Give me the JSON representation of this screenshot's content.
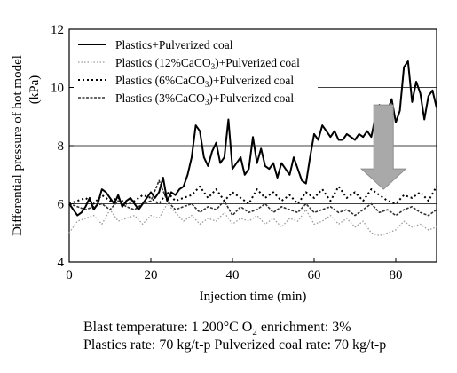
{
  "chart_data": {
    "type": "line",
    "xlabel": "Injection time (min)",
    "ylabel": "Differential pressure of hot model",
    "ylabel_unit": "(kPa)",
    "xlim": [
      0,
      90
    ],
    "ylim": [
      4,
      12
    ],
    "xticks": [
      0,
      20,
      40,
      60,
      80
    ],
    "yticks": [
      4,
      6,
      8,
      10,
      12
    ],
    "grid_y": [
      6,
      8,
      10
    ],
    "legend_position": "top-left",
    "series": [
      {
        "name": "Plastics+Pulverized coal",
        "style": "solid",
        "color": "#000000",
        "x": [
          0,
          1,
          2,
          3,
          4,
          5,
          6,
          7,
          8,
          9,
          10,
          11,
          12,
          13,
          14,
          15,
          16,
          17,
          18,
          19,
          20,
          21,
          22,
          23,
          24,
          25,
          26,
          27,
          28,
          29,
          30,
          31,
          32,
          33,
          34,
          35,
          36,
          37,
          38,
          39,
          40,
          41,
          42,
          43,
          44,
          45,
          46,
          47,
          48,
          49,
          50,
          51,
          52,
          53,
          54,
          55,
          56,
          57,
          58,
          59,
          60,
          61,
          62,
          63,
          64,
          65,
          66,
          67,
          68,
          69,
          70,
          71,
          72,
          73,
          74,
          75,
          76,
          77,
          78,
          79,
          80,
          81,
          82,
          83,
          84,
          85,
          86,
          87,
          88,
          89,
          90
        ],
        "y": [
          6.0,
          5.8,
          5.6,
          5.7,
          5.9,
          6.2,
          5.8,
          6.0,
          6.5,
          6.4,
          6.2,
          6.0,
          6.3,
          5.9,
          6.1,
          6.2,
          6.0,
          5.8,
          6.0,
          6.2,
          6.4,
          6.2,
          6.4,
          6.9,
          6.1,
          6.4,
          6.3,
          6.5,
          6.6,
          7.0,
          7.6,
          8.7,
          8.5,
          7.6,
          7.3,
          7.8,
          8.1,
          7.4,
          7.6,
          8.9,
          7.2,
          7.4,
          7.6,
          7.0,
          7.2,
          8.3,
          7.4,
          7.9,
          7.3,
          7.2,
          7.4,
          6.9,
          7.4,
          7.2,
          7.0,
          7.6,
          7.2,
          6.8,
          6.7,
          7.6,
          8.4,
          8.2,
          8.7,
          8.5,
          8.3,
          8.5,
          8.2,
          8.2,
          8.4,
          8.3,
          8.2,
          8.4,
          8.3,
          8.5,
          8.3,
          9.0,
          9.4,
          9.0,
          9.2,
          9.6,
          8.8,
          9.2,
          10.7,
          10.9,
          9.5,
          10.2,
          9.8,
          8.9,
          9.7,
          9.9,
          9.3
        ]
      },
      {
        "name": "Plastics (12%CaCO3)+Pulverized coal",
        "style": "dotted-light",
        "color": "#9a9a9a",
        "x": [
          0,
          2,
          4,
          6,
          8,
          10,
          12,
          14,
          16,
          18,
          20,
          22,
          24,
          26,
          28,
          30,
          32,
          34,
          36,
          38,
          40,
          42,
          44,
          46,
          48,
          50,
          52,
          54,
          56,
          58,
          60,
          62,
          64,
          66,
          68,
          70,
          72,
          74,
          76,
          78,
          80,
          82,
          84,
          86,
          88,
          90
        ],
        "y": [
          5.0,
          5.4,
          5.5,
          5.6,
          5.3,
          5.8,
          5.4,
          5.5,
          5.6,
          5.3,
          5.6,
          5.5,
          6.0,
          5.7,
          5.4,
          5.6,
          5.3,
          5.5,
          5.4,
          5.7,
          5.3,
          5.5,
          5.4,
          5.6,
          5.3,
          5.5,
          5.2,
          5.5,
          5.4,
          5.8,
          5.3,
          5.4,
          5.6,
          5.3,
          5.5,
          5.2,
          5.4,
          5.0,
          4.9,
          5.0,
          5.1,
          5.4,
          5.2,
          5.3,
          5.1,
          5.2
        ]
      },
      {
        "name": "Plastics (6%CaCO3)+Pulverized coal",
        "style": "dotted",
        "color": "#000000",
        "x": [
          0,
          2,
          4,
          6,
          8,
          10,
          12,
          14,
          16,
          18,
          20,
          22,
          24,
          26,
          28,
          30,
          32,
          34,
          36,
          38,
          40,
          42,
          44,
          46,
          48,
          50,
          52,
          54,
          56,
          58,
          60,
          62,
          64,
          66,
          68,
          70,
          72,
          74,
          76,
          78,
          80,
          82,
          84,
          86,
          88,
          90
        ],
        "y": [
          6.0,
          6.1,
          6.2,
          6.0,
          6.3,
          6.1,
          6.2,
          6.0,
          6.1,
          6.3,
          6.2,
          6.0,
          6.4,
          6.1,
          6.2,
          6.3,
          6.6,
          6.2,
          6.5,
          6.1,
          6.4,
          6.2,
          6.0,
          6.5,
          6.2,
          6.4,
          6.1,
          6.3,
          6.0,
          6.4,
          6.2,
          6.5,
          6.1,
          6.6,
          6.2,
          6.4,
          6.1,
          6.5,
          6.3,
          6.1,
          6.0,
          6.3,
          6.2,
          6.4,
          6.1,
          6.6
        ]
      },
      {
        "name": "Plastics (3%CaCO3)+Pulverized coal",
        "style": "dashed",
        "color": "#333333",
        "x": [
          0,
          2,
          4,
          6,
          8,
          10,
          12,
          14,
          16,
          18,
          20,
          22,
          24,
          26,
          28,
          30,
          32,
          34,
          36,
          38,
          40,
          42,
          44,
          46,
          48,
          50,
          52,
          54,
          56,
          58,
          60,
          62,
          64,
          66,
          68,
          70,
          72,
          74,
          76,
          78,
          80,
          82,
          84,
          86,
          88,
          90
        ],
        "y": [
          6.0,
          5.9,
          5.8,
          5.9,
          6.0,
          5.8,
          6.1,
          5.9,
          5.8,
          6.0,
          6.1,
          6.8,
          6.1,
          5.8,
          5.9,
          6.0,
          5.7,
          5.9,
          5.8,
          6.1,
          5.6,
          5.9,
          5.7,
          5.8,
          6.0,
          5.7,
          5.9,
          5.8,
          5.7,
          6.0,
          5.7,
          5.8,
          5.9,
          5.7,
          5.8,
          5.6,
          5.8,
          6.0,
          5.7,
          5.8,
          5.6,
          5.8,
          5.9,
          5.7,
          5.6,
          5.8
        ]
      }
    ],
    "annotation": {
      "type": "down-arrow",
      "x": 77,
      "y_from": 9.4,
      "y_to": 6.5,
      "color": "#a9a9a9"
    }
  },
  "caption": {
    "line1_a": "Blast temperature: 1 200°C   O",
    "line1_sub": "2",
    "line1_b": " enrichment: 3%",
    "line2": "Plastics rate: 70 kg/t-p   Pulverized coal rate: 70 kg/t-p"
  }
}
